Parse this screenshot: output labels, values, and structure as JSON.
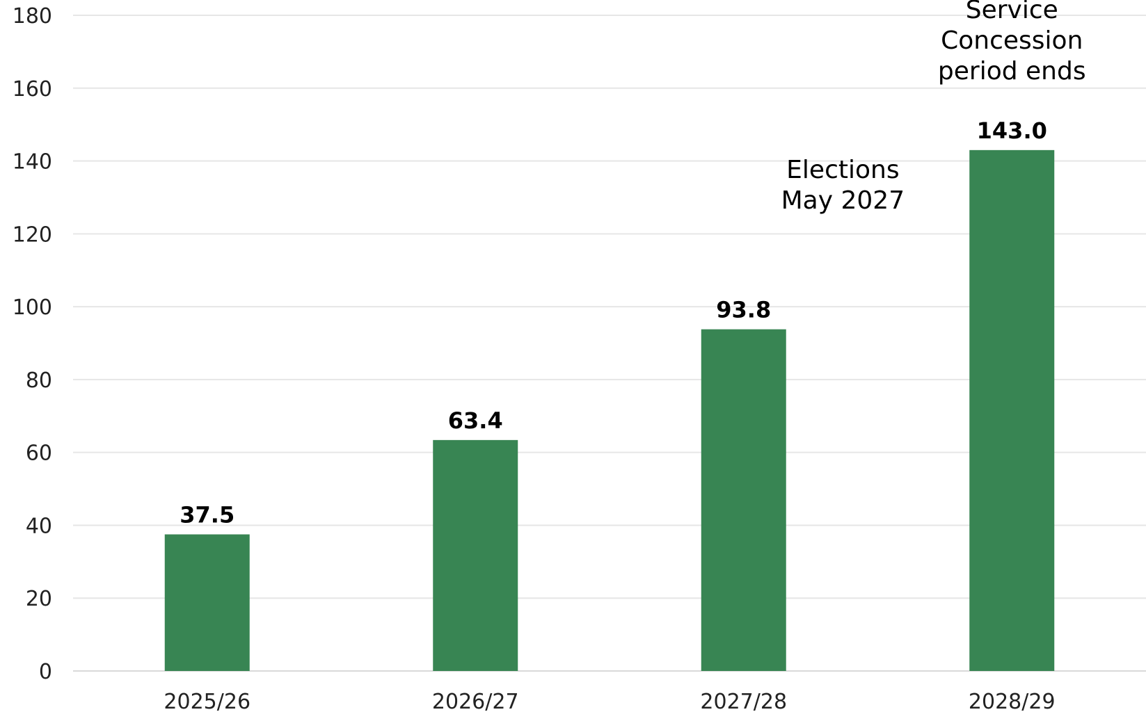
{
  "chart_data": {
    "type": "bar",
    "categories": [
      "2025/26",
      "2026/27",
      "2027/28",
      "2028/29"
    ],
    "values": [
      37.5,
      63.4,
      93.8,
      143.0
    ],
    "data_labels": [
      "37.5",
      "63.4",
      "93.8",
      "143.0"
    ],
    "ylim": [
      0,
      180
    ],
    "y_ticks": [
      0,
      20,
      40,
      60,
      80,
      100,
      120,
      140,
      160,
      180
    ],
    "grid": true,
    "bar_color": "#388553",
    "annotations": [
      {
        "category": "2027/28",
        "lines": [
          "Elections",
          "May 2027"
        ]
      },
      {
        "category": "2028/29",
        "lines": [
          "Service",
          "Concession",
          "period ends"
        ]
      }
    ]
  }
}
